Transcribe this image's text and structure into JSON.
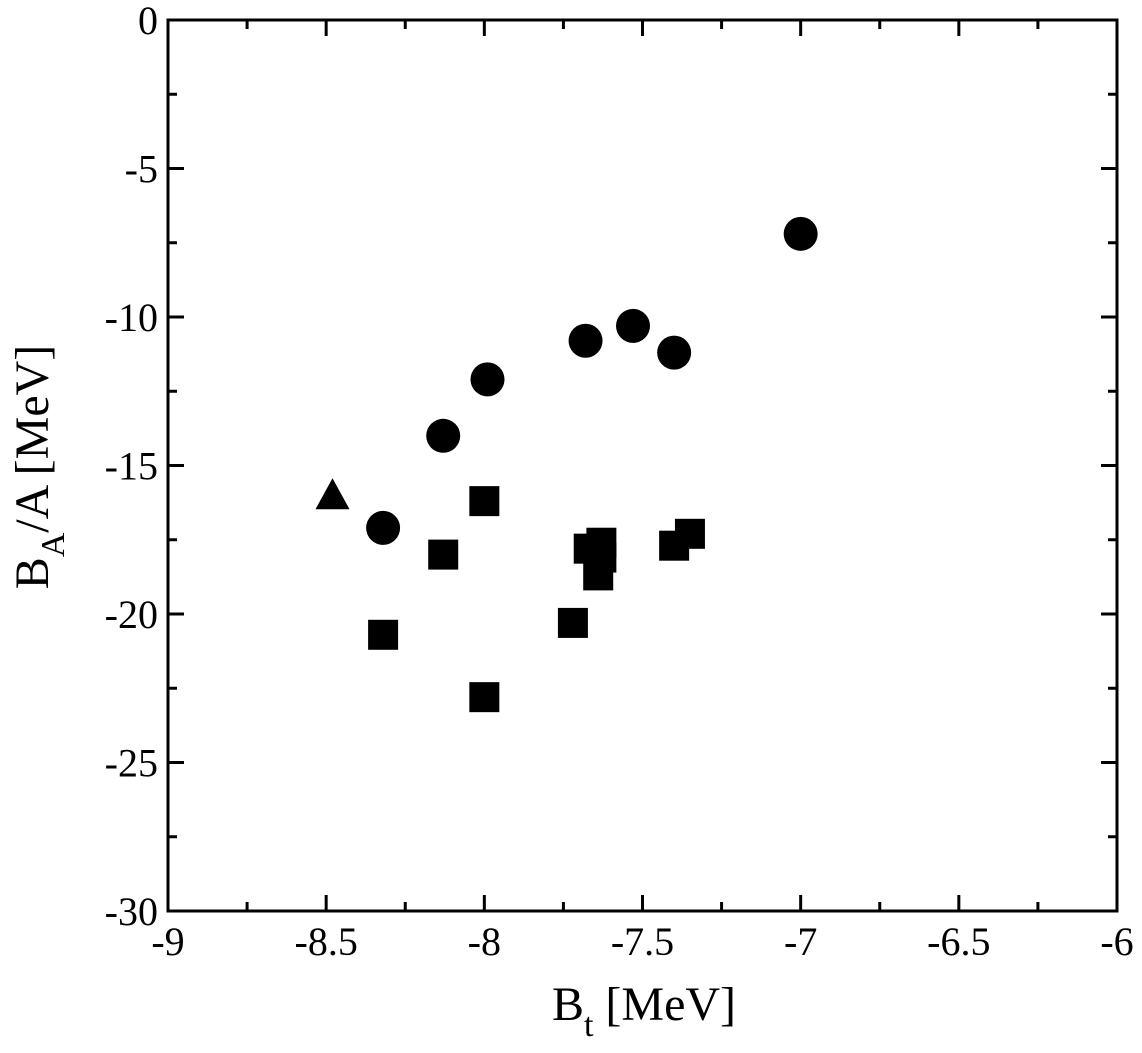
{
  "chart_data": {
    "type": "scatter",
    "title": "",
    "xlabel": {
      "main": "B",
      "sub": "t",
      "unit": " [MeV]"
    },
    "ylabel": {
      "main": "B",
      "sub": "A",
      "unit": "/A [MeV]"
    },
    "xlim": [
      -9,
      -6
    ],
    "ylim": [
      -30,
      0
    ],
    "x_ticks": [
      -9,
      -8.5,
      -8,
      -7.5,
      -7,
      -6.5,
      -6
    ],
    "x_tick_labels": [
      "-9",
      "-8.5",
      "-8",
      "-7.5",
      "-7",
      "-6.5",
      "-6"
    ],
    "y_ticks": [
      -30,
      -25,
      -20,
      -15,
      -10,
      -5,
      0
    ],
    "y_tick_labels": [
      "-30",
      "-25",
      "-20",
      "-15",
      "-10",
      "-5",
      "0"
    ],
    "x_minor_step": 0.25,
    "y_minor_step": 2.5,
    "grid": false,
    "legend": "none",
    "series": [
      {
        "marker": "circle",
        "color": "#000000",
        "points": [
          {
            "x": -8.32,
            "y": -17.1
          },
          {
            "x": -8.13,
            "y": -14.0
          },
          {
            "x": -7.99,
            "y": -12.1
          },
          {
            "x": -7.68,
            "y": -10.8
          },
          {
            "x": -7.53,
            "y": -10.3
          },
          {
            "x": -7.4,
            "y": -11.2
          },
          {
            "x": -7.0,
            "y": -7.2
          }
        ]
      },
      {
        "marker": "square",
        "color": "#000000",
        "points": [
          {
            "x": -8.32,
            "y": -20.7
          },
          {
            "x": -8.13,
            "y": -18.0
          },
          {
            "x": -8.0,
            "y": -16.2
          },
          {
            "x": -8.0,
            "y": -22.8
          },
          {
            "x": -7.72,
            "y": -20.3
          },
          {
            "x": -7.67,
            "y": -17.8
          },
          {
            "x": -7.63,
            "y": -17.6
          },
          {
            "x": -7.63,
            "y": -18.1
          },
          {
            "x": -7.64,
            "y": -18.7
          },
          {
            "x": -7.4,
            "y": -17.7
          },
          {
            "x": -7.35,
            "y": -17.3
          }
        ]
      },
      {
        "marker": "triangle",
        "color": "#000000",
        "points": [
          {
            "x": -8.48,
            "y": -16.0
          }
        ]
      }
    ]
  }
}
